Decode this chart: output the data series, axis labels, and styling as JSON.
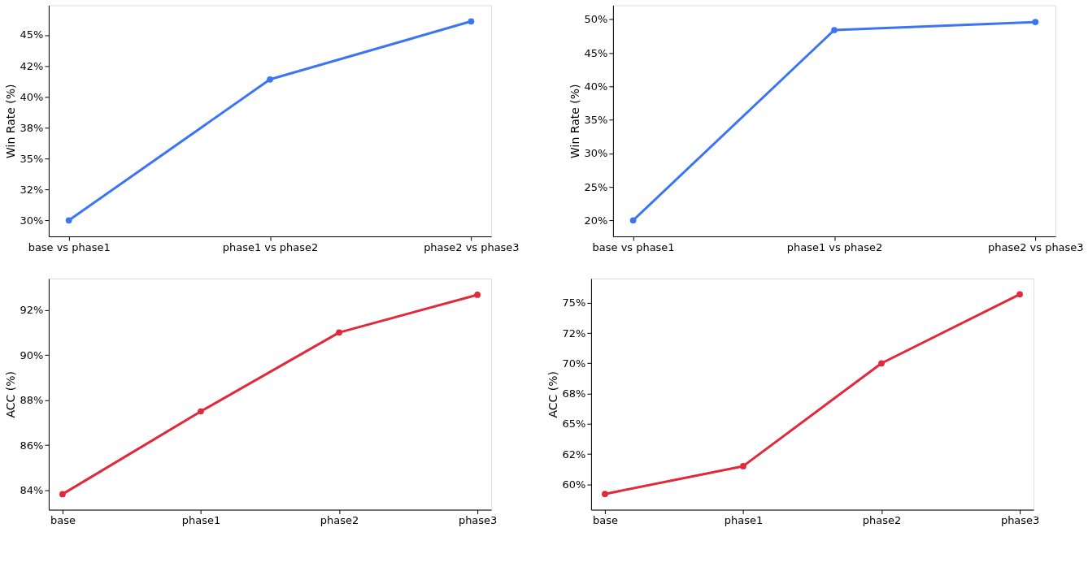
{
  "chart_data": [
    {
      "type": "line",
      "categories": [
        "base vs phase1",
        "phase1 vs phase2",
        "phase2 vs phase3"
      ],
      "values": [
        30.0,
        41.4,
        46.1
      ],
      "color": "#3b75f5",
      "ylabel": "Win Rate (%)",
      "ylim": [
        28.7,
        47.4
      ],
      "yticks": [
        {
          "value": 30,
          "label": "30%"
        },
        {
          "value": 32.5,
          "label": "32%"
        },
        {
          "value": 35,
          "label": "35%"
        },
        {
          "value": 37.5,
          "label": "38%"
        },
        {
          "value": 40,
          "label": "40%"
        },
        {
          "value": 42.5,
          "label": "42%"
        },
        {
          "value": 45,
          "label": "45%"
        }
      ],
      "marker": "circle",
      "line_style": "solid"
    },
    {
      "type": "line",
      "categories": [
        "base vs phase1",
        "phase1 vs phase2",
        "phase2 vs phase3"
      ],
      "values": [
        20.0,
        48.4,
        49.6
      ],
      "color": "#3b75f5",
      "ylabel": "Win Rate (%)",
      "ylim": [
        17.6,
        52.1
      ],
      "yticks": [
        {
          "value": 20,
          "label": "20%"
        },
        {
          "value": 25,
          "label": "25%"
        },
        {
          "value": 30,
          "label": "30%"
        },
        {
          "value": 35,
          "label": "35%"
        },
        {
          "value": 40,
          "label": "40%"
        },
        {
          "value": 45,
          "label": "45%"
        },
        {
          "value": 50,
          "label": "50%"
        }
      ],
      "marker": "circle",
      "line_style": "solid"
    },
    {
      "type": "line",
      "categories": [
        "base",
        "phase1",
        "phase2",
        "phase3"
      ],
      "values": [
        83.83,
        87.5,
        91.0,
        92.67
      ],
      "color": "#e0293a",
      "ylabel": "ACC (%)",
      "ylim": [
        83.14,
        93.39
      ],
      "yticks": [
        {
          "value": 84,
          "label": "84%"
        },
        {
          "value": 86,
          "label": "86%"
        },
        {
          "value": 88,
          "label": "88%"
        },
        {
          "value": 90,
          "label": "90%"
        },
        {
          "value": 92,
          "label": "92%"
        }
      ],
      "marker": "circle",
      "line_style": "solid"
    },
    {
      "type": "line",
      "categories": [
        "base",
        "phase1",
        "phase2",
        "phase3"
      ],
      "values": [
        59.2,
        61.5,
        70.0,
        75.7
      ],
      "color": "#e0293a",
      "ylabel": "ACC (%)",
      "ylim": [
        57.9,
        77.0
      ],
      "yticks": [
        {
          "value": 60,
          "label": "60%"
        },
        {
          "value": 62.5,
          "label": "62%"
        },
        {
          "value": 65,
          "label": "65%"
        },
        {
          "value": 67.5,
          "label": "68%"
        },
        {
          "value": 70,
          "label": "70%"
        },
        {
          "value": 72.5,
          "label": "72%"
        },
        {
          "value": 75,
          "label": "75%"
        }
      ],
      "marker": "circle",
      "line_style": "solid"
    }
  ]
}
